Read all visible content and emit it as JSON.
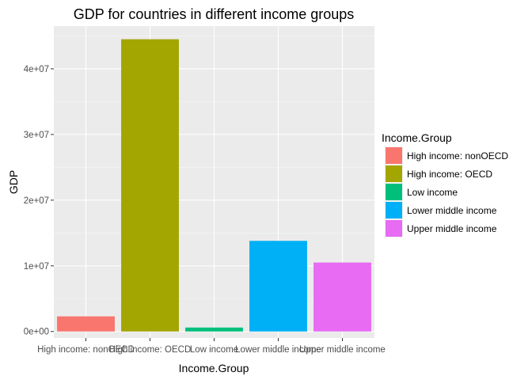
{
  "chart_data": {
    "type": "bar",
    "title": "GDP for countries in different income groups",
    "xlabel": "Income.Group",
    "ylabel": "GDP",
    "categories": [
      "High income: nonOECD",
      "High income: OECD",
      "Low income",
      "Lower middle income",
      "Upper middle income"
    ],
    "values": [
      2300000,
      44500000,
      600000,
      13800000,
      10500000
    ],
    "ylim": [
      -1000000,
      46500000
    ],
    "yticks": [
      0,
      10000000,
      20000000,
      30000000,
      40000000
    ],
    "ytick_labels": [
      "0e+00",
      "1e+07",
      "2e+07",
      "3e+07",
      "4e+07"
    ],
    "grid": true,
    "legend": {
      "title": "Income.Group",
      "placement": "right",
      "entries": [
        "High income: nonOECD",
        "High income: OECD",
        "Low income",
        "Lower middle income",
        "Upper middle income"
      ]
    },
    "colors": [
      "#F8766D",
      "#A3A500",
      "#00BF7D",
      "#00B0F6",
      "#E76BF3"
    ],
    "panel_background": "#EBEBEB",
    "grid_major_color": "#FFFFFF",
    "grid_minor_color": "#F5F5F5"
  }
}
